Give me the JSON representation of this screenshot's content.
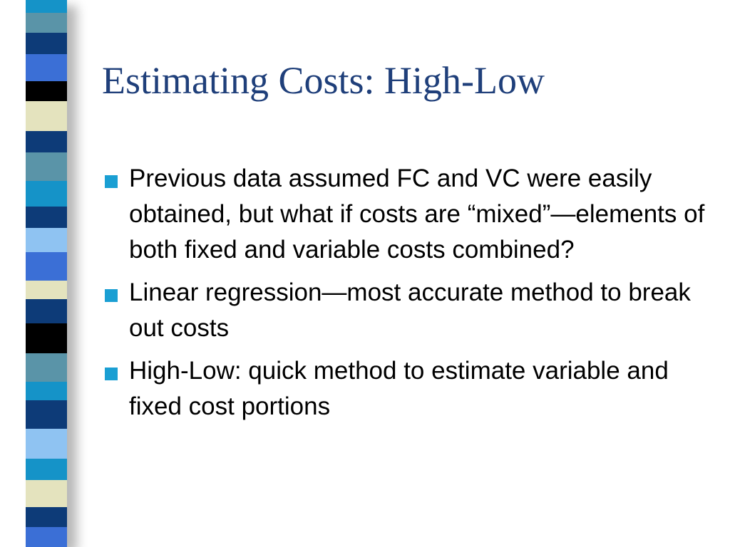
{
  "slide": {
    "title": "Estimating Costs: High-Low",
    "title_color": "#1F3F7A",
    "bullet_color": "#1A9FD3",
    "bullets": [
      "Previous data assumed FC and VC were easily obtained, but what if costs are “mixed”—elements of both fixed and variable costs combined?",
      "Linear regression—most accurate method to break out costs",
      "High-Low: quick method to estimate variable and fixed cost portions"
    ]
  },
  "stripe_colors": [
    "#1593C8",
    "#5A94A8",
    "#0D3B78",
    "#3B6FD6",
    "#000000",
    "#E4E3BE",
    "#0D3B78",
    "#5A94A8",
    "#1593C8",
    "#0D3B78",
    "#8FC3F2",
    "#3B6FD6",
    "#E4E3BE",
    "#0D3B78",
    "#000000",
    "#5A94A8",
    "#1593C8",
    "#0D3B78",
    "#8FC3F2",
    "#1593C8",
    "#E4E3BE",
    "#0D3B78",
    "#3B6FD6",
    "#8FC3F2",
    "#000000"
  ]
}
